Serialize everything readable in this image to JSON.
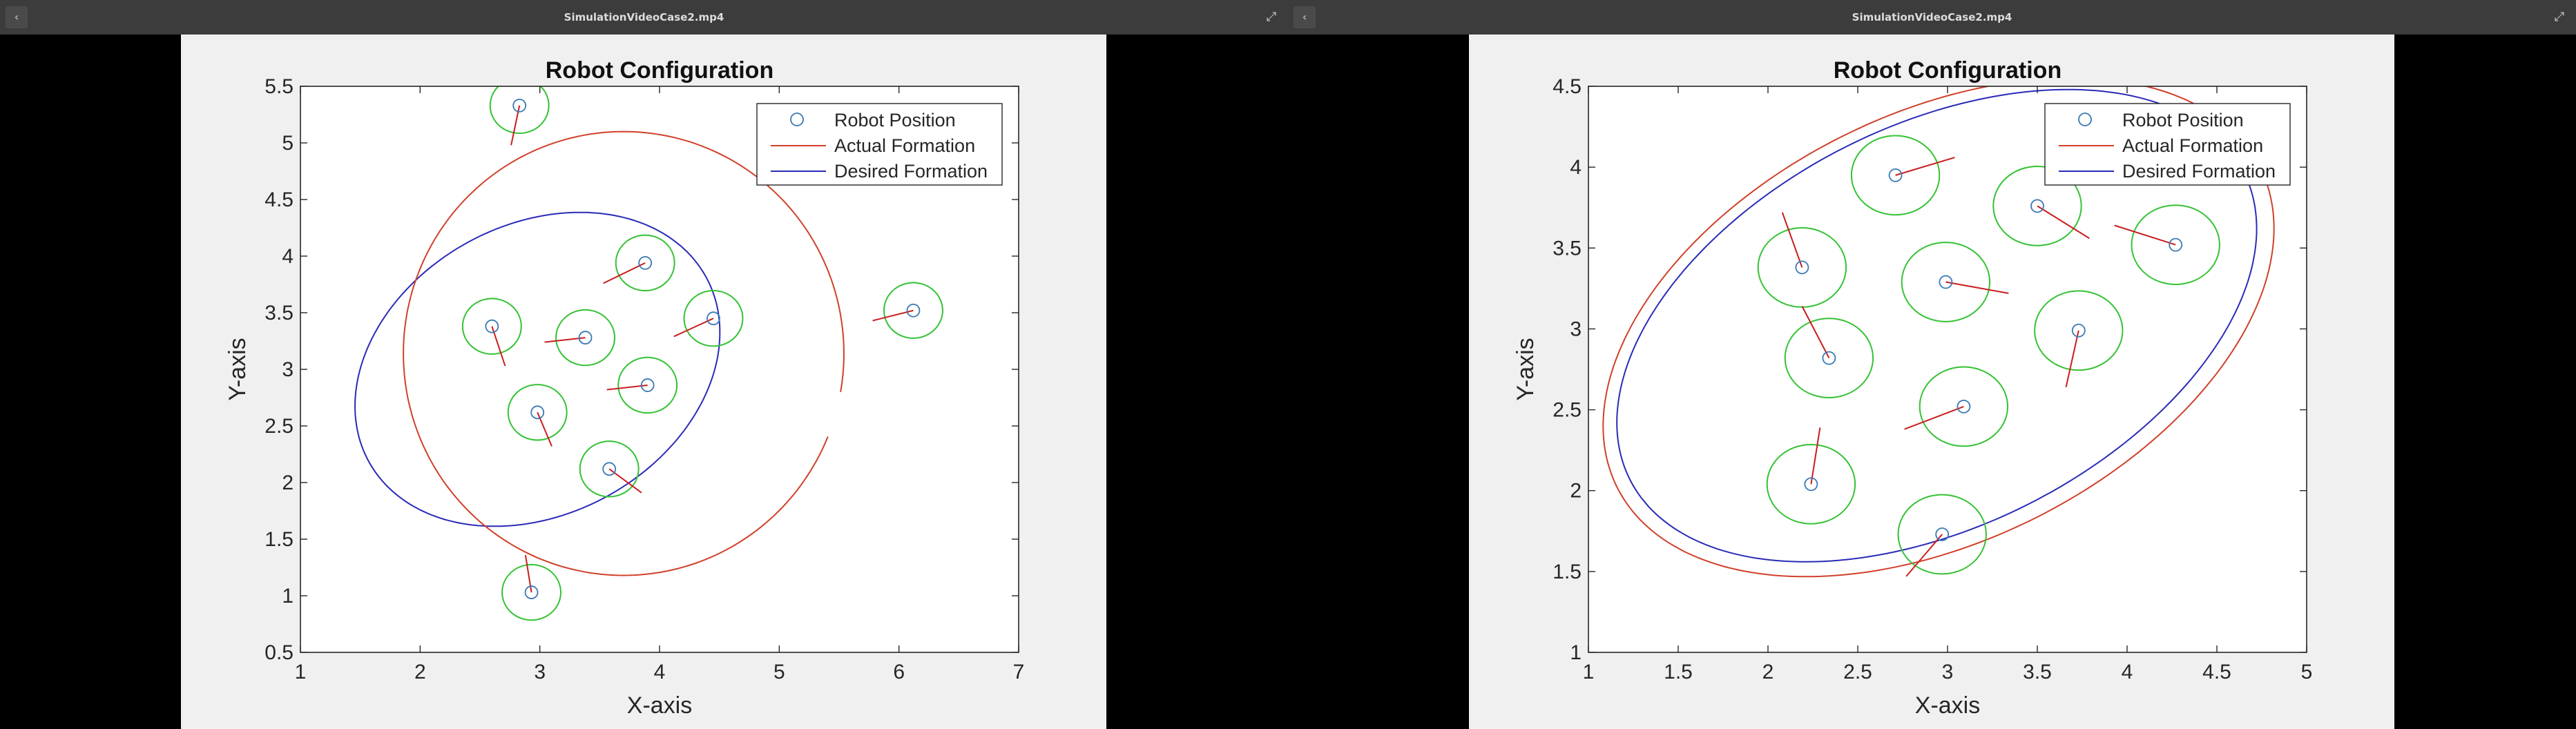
{
  "panes": [
    {
      "window_title": "SimulationVideoCase2.mp4",
      "back_icon": "chevron-left-icon",
      "expand_icon": "expand-icon"
    },
    {
      "window_title": "SimulationVideoCase2.mp4",
      "back_icon": "chevron-left-icon",
      "expand_icon": "expand-icon"
    }
  ],
  "chart_data": [
    {
      "type": "scatter",
      "title": "Robot Configuration",
      "xlabel": "X-axis",
      "ylabel": "Y-axis",
      "xlim": [
        1,
        7
      ],
      "ylim": [
        0.5,
        5.5
      ],
      "xticks": [
        "1",
        "2",
        "3",
        "4",
        "5",
        "6",
        "7"
      ],
      "yticks": [
        "0.5",
        "1",
        "1.5",
        "2",
        "2.5",
        "3",
        "3.5",
        "4",
        "4.5",
        "5",
        "5.5"
      ],
      "grid": false,
      "legend_position": "top-right",
      "legend": [
        "Robot Position",
        "Actual Formation",
        "Desired Formation"
      ],
      "colors": {
        "robot": "#3a78b4",
        "actual": "#d0402a",
        "desired": "#2a2ab8",
        "safety": "#34c234",
        "heading": "#c81e1e"
      },
      "robots": [
        {
          "x": 2.83,
          "y": 5.33,
          "hx": 2.76,
          "hy": 4.98
        },
        {
          "x": 3.88,
          "y": 3.94,
          "hx": 3.53,
          "hy": 3.76
        },
        {
          "x": 4.45,
          "y": 3.45,
          "hx": 4.12,
          "hy": 3.29
        },
        {
          "x": 6.12,
          "y": 3.52,
          "hx": 5.78,
          "hy": 3.43
        },
        {
          "x": 2.6,
          "y": 3.38,
          "hx": 2.71,
          "hy": 3.03
        },
        {
          "x": 3.38,
          "y": 3.28,
          "hx": 3.04,
          "hy": 3.24
        },
        {
          "x": 3.9,
          "y": 2.86,
          "hx": 3.56,
          "hy": 2.82
        },
        {
          "x": 2.98,
          "y": 2.62,
          "hx": 3.1,
          "hy": 2.32
        },
        {
          "x": 3.58,
          "y": 2.12,
          "hx": 3.85,
          "hy": 1.91
        },
        {
          "x": 2.93,
          "y": 1.03,
          "hx": 2.88,
          "hy": 1.36
        }
      ],
      "safety_radius_units": 0.245,
      "actual_formation": {
        "cx": 3.7,
        "cy": 3.14,
        "rx": 1.84,
        "ry": 1.96,
        "angle_deg": 0,
        "gap_start_deg": 338,
        "gap_end_deg": 350
      },
      "desired_formation": {
        "cx": 2.98,
        "cy": 3.0,
        "rx": 1.63,
        "ry": 1.26,
        "angle_deg": 34
      }
    },
    {
      "type": "scatter",
      "title": "Robot Configuration",
      "xlabel": "X-axis",
      "ylabel": "Y-axis",
      "xlim": [
        1,
        5
      ],
      "ylim": [
        1,
        4.5
      ],
      "xticks": [
        "1",
        "1.5",
        "2",
        "2.5",
        "3",
        "3.5",
        "4",
        "4.5",
        "5"
      ],
      "yticks": [
        "1",
        "1.5",
        "2",
        "2.5",
        "3",
        "3.5",
        "4",
        "4.5"
      ],
      "grid": false,
      "legend_position": "top-right",
      "legend": [
        "Robot Position",
        "Actual Formation",
        "Desired Formation"
      ],
      "colors": {
        "robot": "#3a78b4",
        "actual": "#d0402a",
        "desired": "#2a2ab8",
        "safety": "#34c234",
        "heading": "#c81e1e"
      },
      "robots": [
        {
          "x": 2.71,
          "y": 3.95,
          "hx": 3.04,
          "hy": 4.06
        },
        {
          "x": 3.5,
          "y": 3.76,
          "hx": 3.79,
          "hy": 3.56
        },
        {
          "x": 4.27,
          "y": 3.52,
          "hx": 3.93,
          "hy": 3.64
        },
        {
          "x": 2.19,
          "y": 3.38,
          "hx": 2.08,
          "hy": 3.72
        },
        {
          "x": 2.99,
          "y": 3.29,
          "hx": 3.34,
          "hy": 3.22
        },
        {
          "x": 3.73,
          "y": 2.99,
          "hx": 3.66,
          "hy": 2.64
        },
        {
          "x": 2.34,
          "y": 2.82,
          "hx": 2.19,
          "hy": 3.14
        },
        {
          "x": 3.09,
          "y": 2.52,
          "hx": 2.76,
          "hy": 2.38
        },
        {
          "x": 2.24,
          "y": 2.04,
          "hx": 2.29,
          "hy": 2.39
        },
        {
          "x": 2.97,
          "y": 1.73,
          "hx": 2.77,
          "hy": 1.47
        }
      ],
      "safety_radius_units": 0.245,
      "actual_formation": {
        "cx": 2.95,
        "cy": 3.01,
        "rx": 2.05,
        "ry": 1.29,
        "angle_deg": 32,
        "gap_start_deg": 0,
        "gap_end_deg": 0
      },
      "desired_formation": {
        "cx": 2.94,
        "cy": 3.02,
        "rx": 1.96,
        "ry": 1.21,
        "angle_deg": 32
      }
    }
  ]
}
